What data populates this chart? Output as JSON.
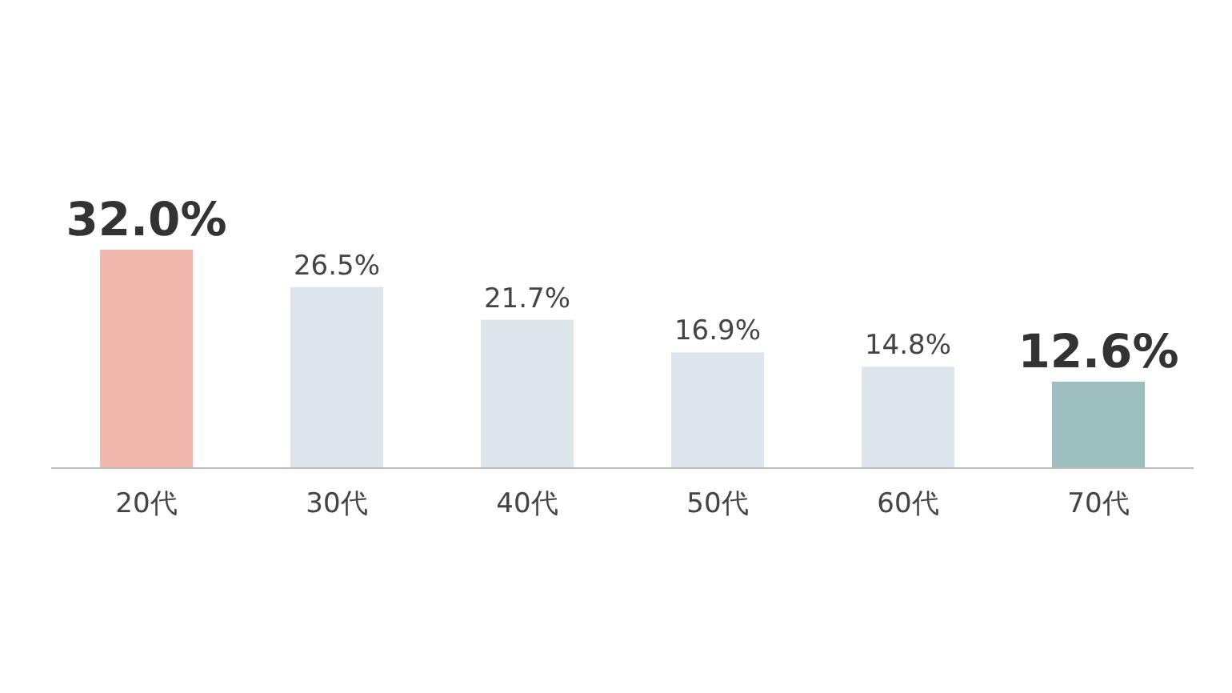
{
  "chart_data": {
    "type": "bar",
    "categories": [
      "20代",
      "30代",
      "40代",
      "50代",
      "60代",
      "70代"
    ],
    "values": [
      32.0,
      26.5,
      21.7,
      16.9,
      14.8,
      12.6
    ],
    "colors": [
      "#f2b8ad",
      "#dde6ea",
      "#dde6ea",
      "#dde6ea",
      "#dde6ea",
      "#9dbfbf"
    ],
    "value_labels": [
      "32.0%",
      "26.5%",
      "21.7%",
      "16.9%",
      "14.8%",
      "12.6%"
    ]
  }
}
